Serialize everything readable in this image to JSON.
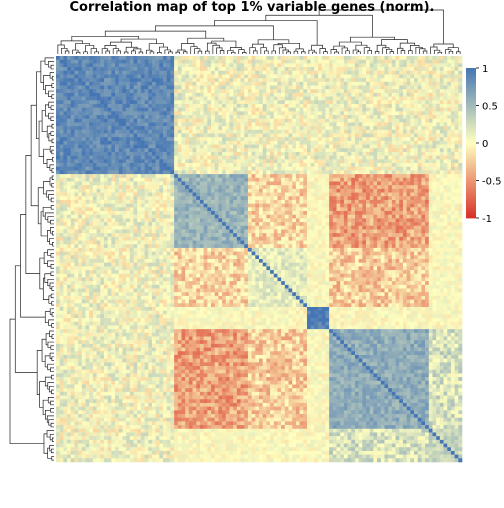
{
  "chart_data": {
    "type": "heatmap",
    "title": "Correlation map of top 1% variable genes (norm).",
    "xlabel": "",
    "ylabel": "",
    "value_range": [
      -1,
      1
    ],
    "color_scale": {
      "low": "#d73027",
      "mid": "#ffffbf",
      "high": "#4575b4",
      "ticks": [
        1,
        0.5,
        0,
        -0.5,
        -1
      ],
      "tick_labels": [
        "1",
        "0.5",
        "0",
        "-0.5",
        "-1"
      ]
    },
    "dendrogram_top": true,
    "dendrogram_left": true,
    "diagonal": 1,
    "blocks": [
      {
        "range": [
          0.0,
          0.29
        ],
        "value": 0.85
      },
      {
        "range": [
          0.29,
          0.47
        ],
        "value": 0.55
      },
      {
        "range": [
          0.47,
          0.62
        ],
        "value": 0.15
      },
      {
        "range": [
          0.62,
          0.67
        ],
        "value": 0.95
      },
      {
        "range": [
          0.67,
          0.92
        ],
        "value": 0.6
      },
      {
        "range": [
          0.92,
          1.0
        ],
        "value": 0.3
      }
    ],
    "cross_blocks": [
      {
        "rows": [
          0.29,
          0.47
        ],
        "cols": [
          0.67,
          0.92
        ],
        "value": -0.45
      },
      {
        "rows": [
          0.29,
          0.47
        ],
        "cols": [
          0.47,
          0.62
        ],
        "value": -0.2
      },
      {
        "rows": [
          0.47,
          0.62
        ],
        "cols": [
          0.67,
          0.92
        ],
        "value": -0.25
      },
      {
        "rows": [
          0.0,
          0.29
        ],
        "cols": [
          0.29,
          1.0
        ],
        "value": 0.05
      },
      {
        "rows": [
          0.92,
          1.0
        ],
        "cols": [
          0.67,
          0.92
        ],
        "value": 0.2
      }
    ]
  }
}
